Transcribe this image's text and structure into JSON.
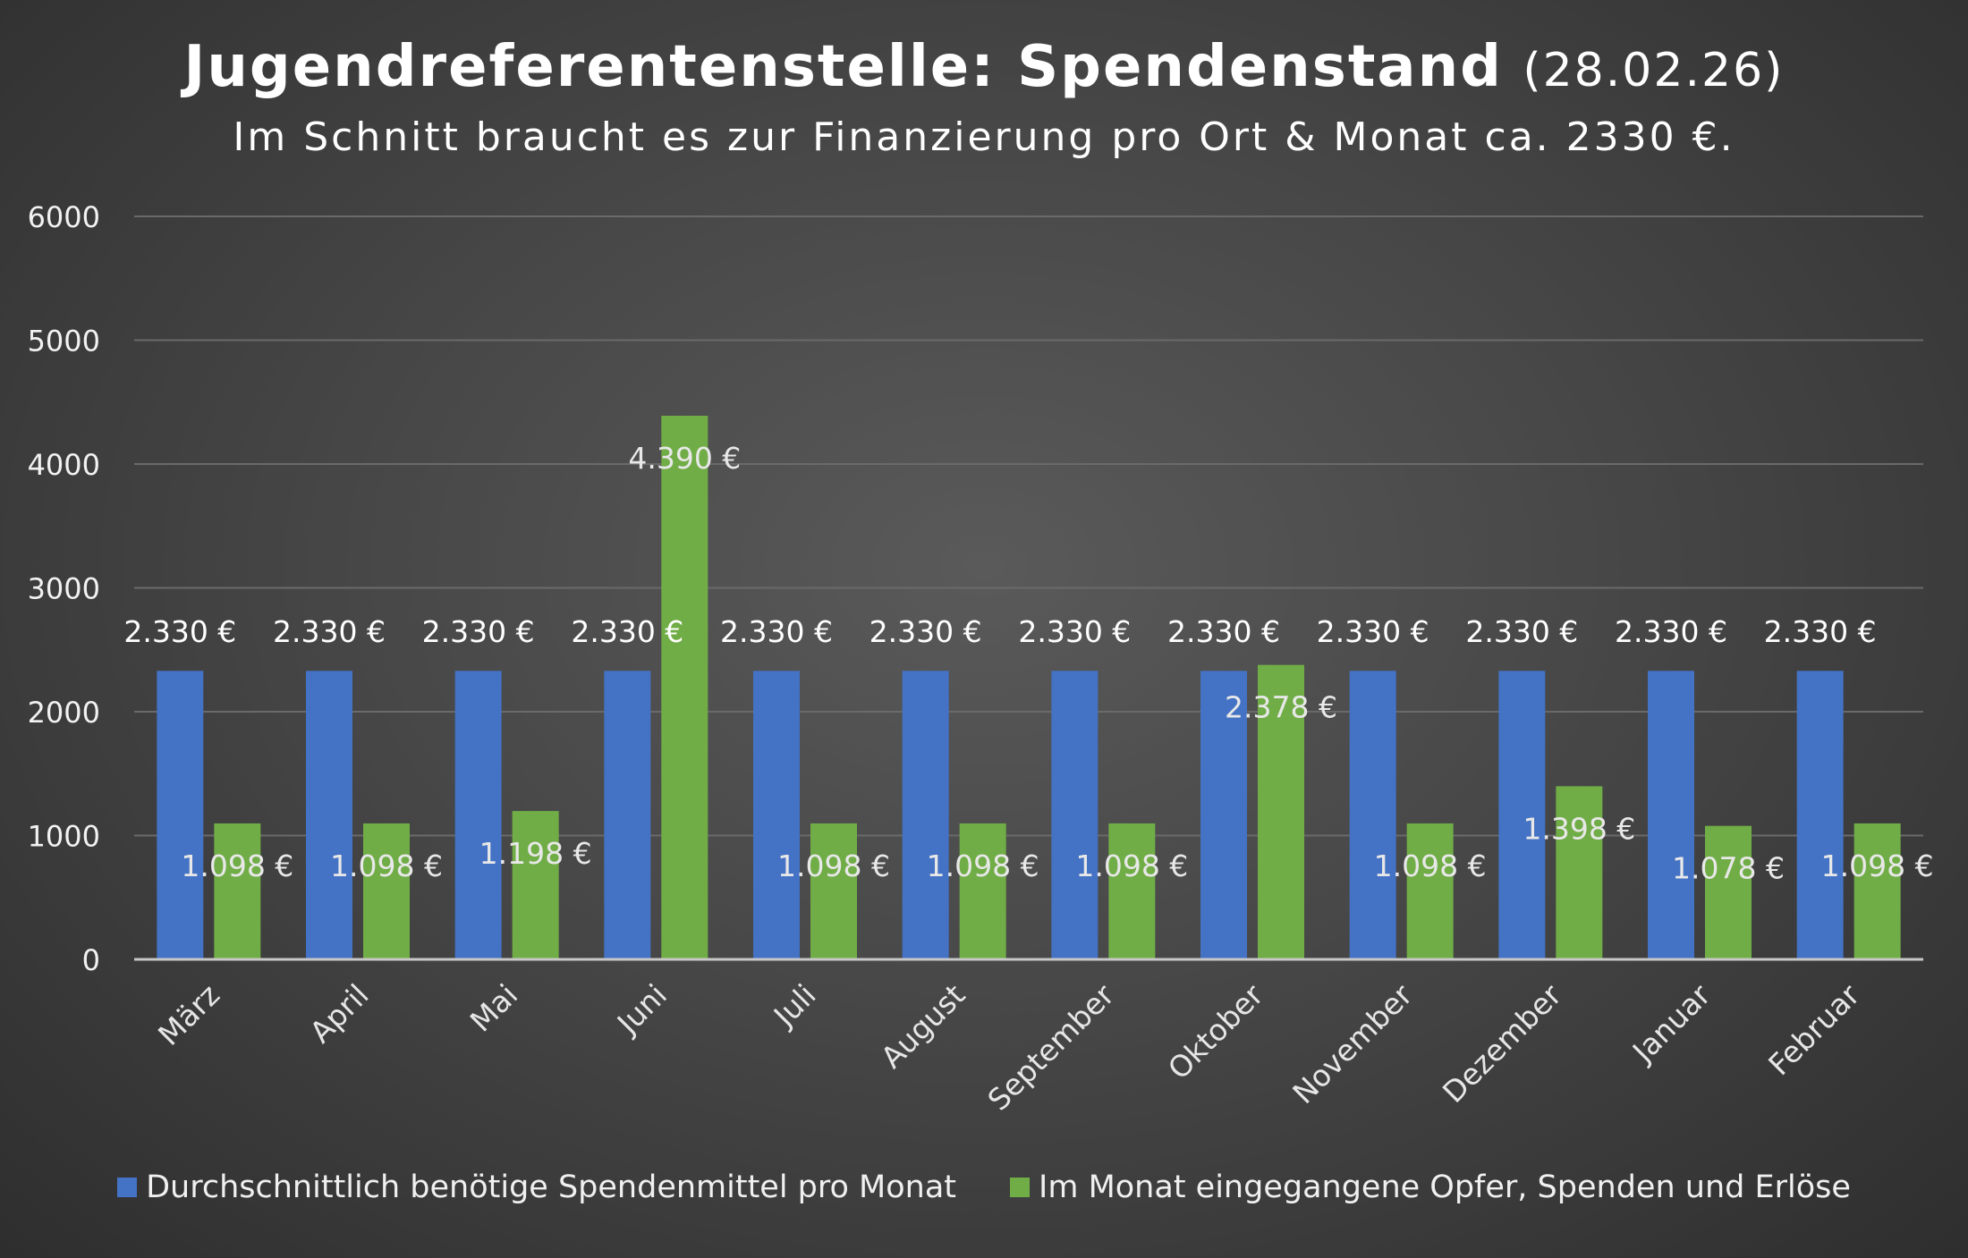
{
  "colors": {
    "needed": "#4472c4",
    "received": "#70ad47",
    "grid": "#6a6a6a",
    "axis": "#c8c8c8"
  },
  "chart_data": {
    "type": "bar",
    "title": "Jugendreferentenstelle: Spendenstand",
    "title_date": "(28.02.26)",
    "subtitle": "Im Schnitt braucht es zur Finanzierung pro Ort & Monat ca. 2330 €.",
    "categories": [
      "März",
      "April",
      "Mai",
      "Juni",
      "Juli",
      "August",
      "September",
      "Oktober",
      "November",
      "Dezember",
      "Januar",
      "Februar"
    ],
    "series": [
      {
        "name": "Durchschnittlich benötige Spendenmittel pro Monat",
        "values": [
          2330,
          2330,
          2330,
          2330,
          2330,
          2330,
          2330,
          2330,
          2330,
          2330,
          2330,
          2330
        ],
        "labels": [
          "2.330 €",
          "2.330 €",
          "2.330 €",
          "2.330 €",
          "2.330 €",
          "2.330 €",
          "2.330 €",
          "2.330 €",
          "2.330 €",
          "2.330 €",
          "2.330 €",
          "2.330 €"
        ]
      },
      {
        "name": "Im Monat eingegangene Opfer, Spenden und Erlöse",
        "values": [
          1098,
          1098,
          1198,
          4390,
          1098,
          1098,
          1098,
          2378,
          1098,
          1398,
          1078,
          1098
        ],
        "labels": [
          "1.098 €",
          "1.098 €",
          "1.198 €",
          "4.390 €",
          "1.098 €",
          "1.098 €",
          "1.098 €",
          "2.378 €",
          "1.098 €",
          "1.398 €",
          "1.078 €",
          "1.098 €"
        ]
      }
    ],
    "yticks": [
      0,
      1000,
      2000,
      3000,
      4000,
      5000,
      6000
    ],
    "ylim": [
      0,
      6000
    ],
    "grid": true,
    "legend_position": "bottom"
  }
}
